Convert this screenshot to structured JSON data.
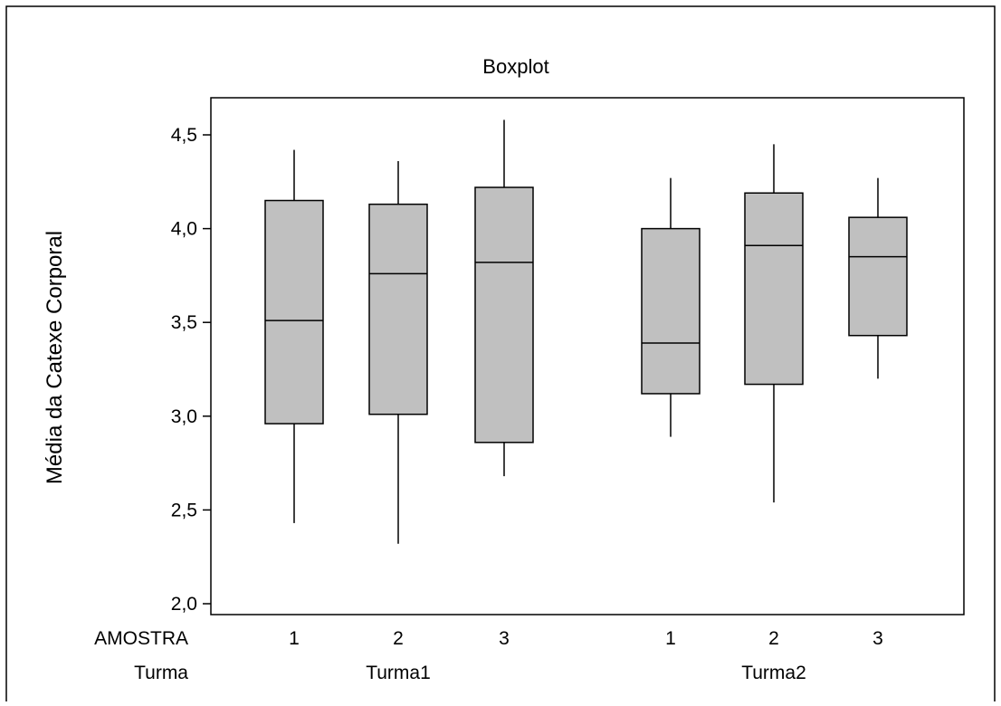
{
  "chart_data": {
    "type": "boxplot",
    "title": "Boxplot",
    "ylabel": "Média da Catexe Corporal",
    "ylim": [
      2.0,
      4.7
    ],
    "yticks": [
      "2,0",
      "2,5",
      "3,0",
      "3,5",
      "4,0",
      "4,5"
    ],
    "ytick_values": [
      2.0,
      2.5,
      3.0,
      3.5,
      4.0,
      4.5
    ],
    "grid": false,
    "legend": "none",
    "box_fill": "#c0c0c0",
    "row_labels": {
      "amostra": "AMOSTRA",
      "turma": "Turma"
    },
    "groups": [
      {
        "label": "Turma1",
        "boxes": [
          {
            "label": "1",
            "min": 2.43,
            "q1": 2.96,
            "median": 3.51,
            "q3": 4.15,
            "max": 4.42
          },
          {
            "label": "2",
            "min": 2.32,
            "q1": 3.01,
            "median": 3.76,
            "q3": 4.13,
            "max": 4.36
          },
          {
            "label": "3",
            "min": 2.68,
            "q1": 2.86,
            "median": 3.82,
            "q3": 4.22,
            "max": 4.58
          }
        ]
      },
      {
        "label": "Turma2",
        "boxes": [
          {
            "label": "1",
            "min": 2.89,
            "q1": 3.12,
            "median": 3.39,
            "q3": 4.0,
            "max": 4.27
          },
          {
            "label": "2",
            "min": 2.54,
            "q1": 3.17,
            "median": 3.91,
            "q3": 4.19,
            "max": 4.45
          },
          {
            "label": "3",
            "min": 3.2,
            "q1": 3.43,
            "median": 3.85,
            "q3": 4.06,
            "max": 4.27
          }
        ]
      }
    ]
  }
}
